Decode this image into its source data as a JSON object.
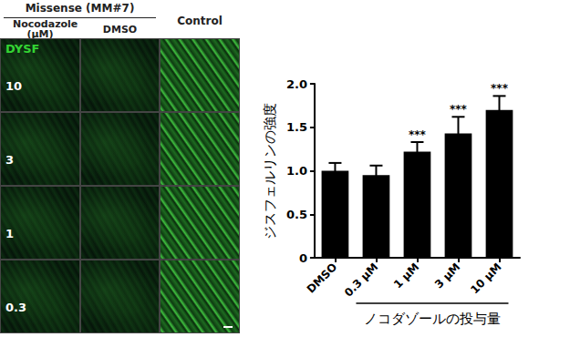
{
  "panel": {
    "header": "Missense (MM#7)",
    "columns": [
      "Nocodazole (μM)",
      "DMSO",
      "Control"
    ],
    "stain": "DYSF",
    "rows": [
      "10",
      "3",
      "1",
      "0.3"
    ]
  },
  "chart_data": {
    "type": "bar",
    "ylabel": "ジスフェルリンの強度",
    "xlabel": "ノコダゾールの投与量",
    "categories": [
      "DMSO",
      "0.3 μM",
      "1 μM",
      "3 μM",
      "10 μM"
    ],
    "values": [
      1.0,
      0.95,
      1.22,
      1.43,
      1.7
    ],
    "errors": [
      0.09,
      0.11,
      0.11,
      0.19,
      0.16
    ],
    "significance": [
      null,
      null,
      "***",
      "***",
      "***"
    ],
    "color": "#000000",
    "ylim": [
      0,
      2
    ],
    "yticks": [
      0,
      0.5,
      {
        "value": 1,
        "label": "1.0"
      },
      1.5,
      {
        "value": 2,
        "label": "2.0"
      }
    ],
    "grid": false
  }
}
